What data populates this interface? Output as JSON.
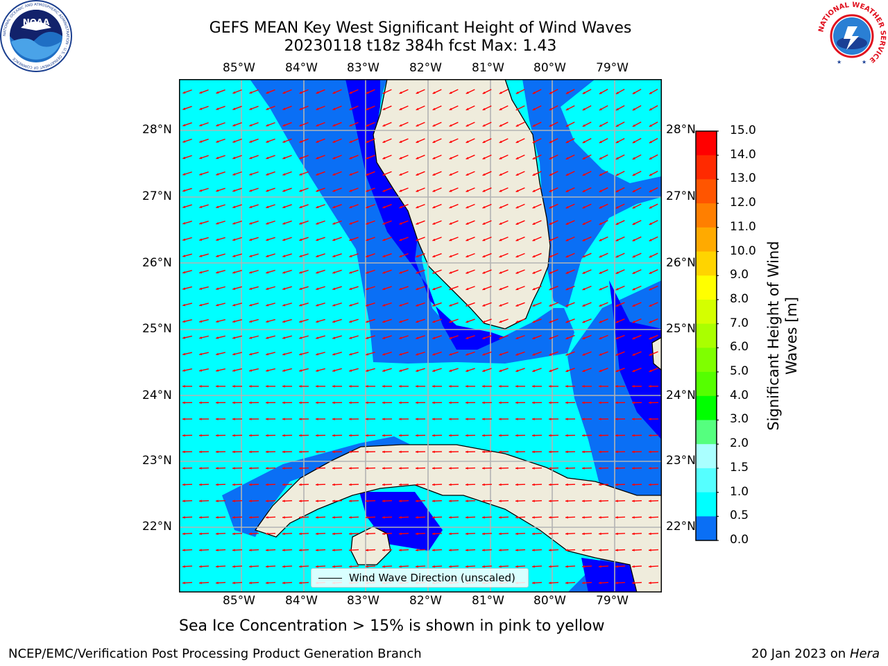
{
  "title": {
    "line1": "GEFS MEAN Key West Significant Height of Wind Waves",
    "line2": "20230118 t18z 384h fcst   Max: 1.43"
  },
  "map": {
    "lon_ticks": [
      "85°W",
      "84°W",
      "83°W",
      "82°W",
      "81°W",
      "80°W",
      "79°W"
    ],
    "lat_ticks": [
      "28°N",
      "27°N",
      "26°N",
      "25°N",
      "24°N",
      "23°N",
      "22°N"
    ],
    "colors": {
      "ocean_low": "#0000ff",
      "ocean_mid": "#0a6ff5",
      "ocean_high": "#00ffff",
      "land": "#efecdc",
      "grid": "#b3b3b3",
      "arrow": "#ff0000"
    },
    "legend_label": "Wind Wave Direction (unscaled)"
  },
  "colorbar": {
    "label": "Significant Height of Wind Waves [m]",
    "ticks": [
      "15.0",
      "14.0",
      "13.0",
      "12.0",
      "11.0",
      "10.0",
      "9.0",
      "8.0",
      "7.0",
      "6.0",
      "5.0",
      "4.0",
      "3.0",
      "2.0",
      "1.5",
      "1.0",
      "0.5",
      "0.0"
    ],
    "colors": [
      "#ff0000",
      "#ff2a00",
      "#ff5500",
      "#ff7f00",
      "#ffaa00",
      "#ffd400",
      "#ffff00",
      "#d4ff00",
      "#aaff00",
      "#7fff00",
      "#55ff00",
      "#00ff00",
      "#55ff7f",
      "#aaffff",
      "#55ffff",
      "#00ffff",
      "#0a6ff5",
      "#0000ff"
    ]
  },
  "logos": {
    "noaa_text": "NOAA",
    "noaa_ring": "NATIONAL OCEANIC AND ATMOSPHERIC ADMINISTRATION · U.S. DEPARTMENT OF COMMERCE",
    "nws_ring": "NATIONAL WEATHER SERVICE"
  },
  "caption": "Sea Ice Concentration > 15% is shown in pink to yellow",
  "footer": {
    "left": "NCEP/EMC/Verification Post Processing Product Generation Branch",
    "right_date": "20 Jan 2023 on ",
    "right_host": "Hera"
  }
}
